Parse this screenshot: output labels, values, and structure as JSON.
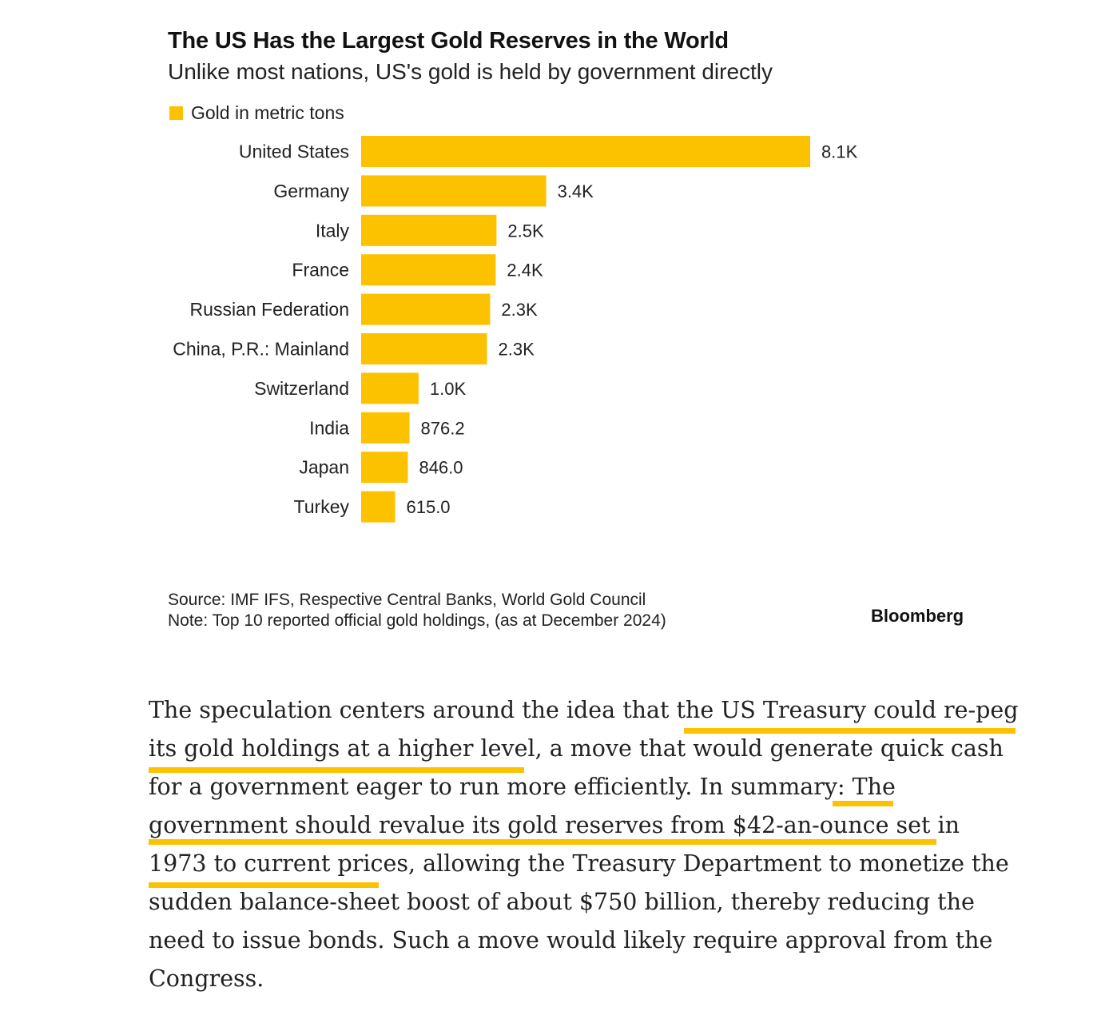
{
  "chart_data": {
    "type": "bar",
    "orientation": "horizontal",
    "title": "The US Has the Largest Gold Reserves in the World",
    "subtitle": "Unlike most nations, US's gold is held by government directly",
    "legend": "Gold in metric tons",
    "categories": [
      "United States",
      "Germany",
      "Italy",
      "France",
      "Russian Federation",
      "China, P.R.: Mainland",
      "Switzerland",
      "India",
      "Japan",
      "Turkey"
    ],
    "values": [
      8133.5,
      3351.5,
      2451.8,
      2437.0,
      2335.9,
      2279.6,
      1040.0,
      876.2,
      846.0,
      615.0
    ],
    "data_labels": [
      "8.1K",
      "3.4K",
      "2.5K",
      "2.4K",
      "2.3K",
      "2.3K",
      "1.0K",
      "876.2",
      "846.0",
      "615.0"
    ],
    "color": "#fcc200",
    "xlim": [
      0,
      8133.5
    ]
  },
  "notes": {
    "source": "Source: IMF IFS, Respective Central Banks, World Gold Council",
    "note": "Note: Top 10 reported official gold holdings, (as at December 2024)",
    "brand": "Bloomberg"
  },
  "article": {
    "lines": [
      "The speculation centers around the idea that the US Treasury could re-peg",
      "its gold holdings at a higher level, a move that would generate quick cash",
      "for a government eager to run more efficiently. In summary: The",
      "government should revalue its gold reserves from $42-an-ounce set in",
      "1973 to current prices, allowing the Treasury Department to monetize the",
      "sudden balance-sheet boost of about $750 billion, thereby reducing the",
      "need to issue bonds. Such a move would likely require approval from the",
      "Congress."
    ]
  },
  "highlight_color": "#fcc200"
}
